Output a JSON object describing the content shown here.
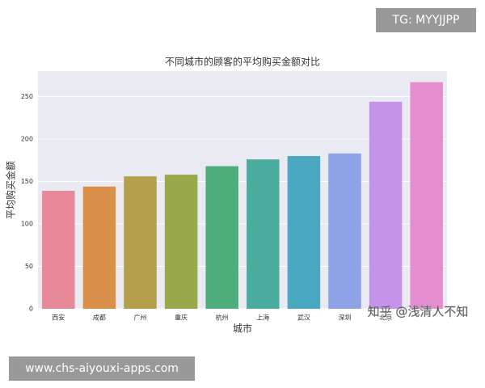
{
  "chart_data": {
    "type": "bar",
    "title": "不同城市的顾客的平均购买金额对比",
    "x_label": "城市",
    "y_label": "平均购买金额",
    "categories": [
      "西安",
      "成都",
      "广州",
      "重庆",
      "杭州",
      "上海",
      "武汉",
      "深圳",
      "北京",
      null
    ],
    "values": [
      139,
      144,
      156,
      158,
      168,
      176,
      180,
      183,
      244,
      267
    ],
    "colors": [
      "#e8899a",
      "#d9914a",
      "#b39f4c",
      "#99a84a",
      "#4fac7c",
      "#4aac9f",
      "#4aa7c0",
      "#8ea3e6",
      "#c594ea",
      "#e48ed0"
    ],
    "ylim": [
      0,
      280
    ],
    "yticks": [
      0,
      50,
      100,
      150,
      200,
      250
    ],
    "grid": true
  },
  "badge": "TG: MYYJJPP",
  "footer_url": "www.chs-aiyouxi-apps.com",
  "watermark": "知乎 @浅清人不知"
}
